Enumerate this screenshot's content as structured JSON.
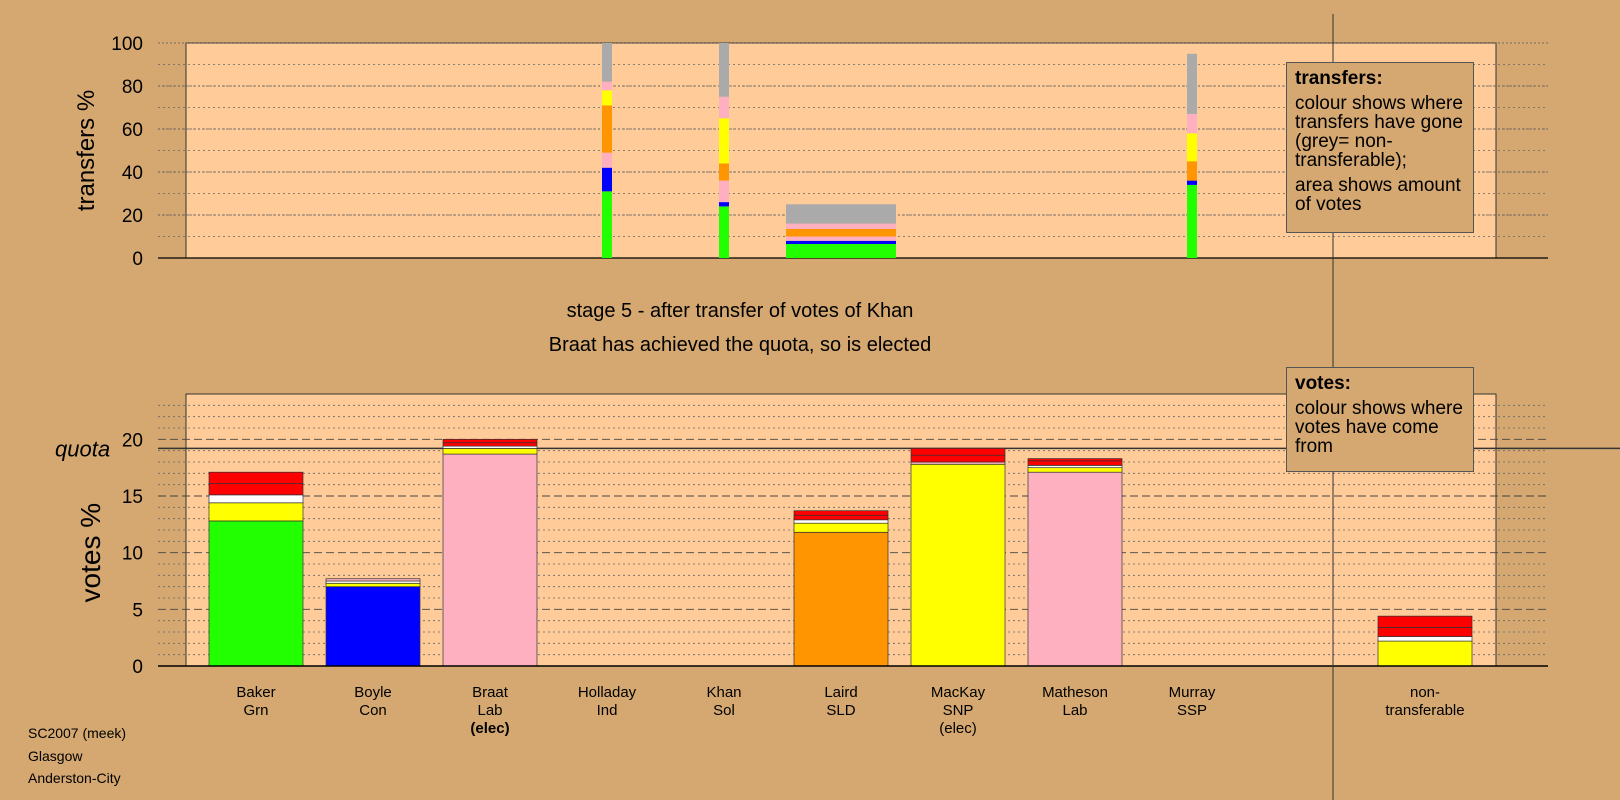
{
  "stage_title": "stage 5 - after transfer of votes of Khan",
  "stage_subtitle": "Braat has achieved the quota, so is elected",
  "info": [
    "SC2007 (meek)",
    "Glasgow",
    "Anderston-City"
  ],
  "legend_transfers": {
    "heading": "transfers:",
    "p1": "colour shows where transfers have gone (grey= non-transferable);",
    "p2": "area shows amount of votes"
  },
  "legend_votes": {
    "heading": "votes:",
    "p1": "colour shows where votes have come from"
  },
  "colors": {
    "background": "#d4a870",
    "plot_bg": "#ffcc99",
    "Grn": "#22ff00",
    "Con": "#0000ff",
    "Lab": "#ffb0c0",
    "Ind": "#ffffff",
    "Sol": "#ff0000",
    "SLD": "#ff9500",
    "SNP": "#ffff00",
    "SSP": "#ff0000",
    "nontransferable": "#aaaaaa"
  },
  "chart_data": [
    {
      "type": "bar",
      "ylabel": "transfers %",
      "ylim": [
        0,
        100
      ],
      "yticks": [
        0,
        20,
        40,
        60,
        80,
        100
      ],
      "columns": [
        {
          "candidate": "Holladay",
          "segments": [
            {
              "party": "Grn",
              "value": 31
            },
            {
              "party": "Con",
              "value": 11
            },
            {
              "party": "Lab",
              "value": 7
            },
            {
              "party": "SLD",
              "value": 22
            },
            {
              "party": "SNP",
              "value": 7
            },
            {
              "party": "Lab",
              "value": 4
            },
            {
              "party": "nontransferable",
              "value": 18
            }
          ]
        },
        {
          "candidate": "Khan",
          "segments": [
            {
              "party": "Grn",
              "value": 24
            },
            {
              "party": "Con",
              "value": 2
            },
            {
              "party": "Lab",
              "value": 10
            },
            {
              "party": "SLD",
              "value": 8
            },
            {
              "party": "SNP",
              "value": 21
            },
            {
              "party": "Lab",
              "value": 10
            },
            {
              "party": "nontransferable",
              "value": 25
            }
          ]
        },
        {
          "candidate": "Laird",
          "wide": true,
          "segments": [
            {
              "party": "Grn",
              "value": 6.5
            },
            {
              "party": "Con",
              "value": 1.5
            },
            {
              "party": "Lab",
              "value": 2
            },
            {
              "party": "SLD",
              "value": 3.5
            },
            {
              "party": "Lab",
              "value": 2.5
            },
            {
              "party": "nontransferable",
              "value": 9
            }
          ]
        },
        {
          "candidate": "Murray",
          "segments": [
            {
              "party": "Grn",
              "value": 34
            },
            {
              "party": "Con",
              "value": 2
            },
            {
              "party": "SLD",
              "value": 9
            },
            {
              "party": "SNP",
              "value": 13
            },
            {
              "party": "Lab",
              "value": 9
            },
            {
              "party": "nontransferable",
              "value": 28
            }
          ]
        }
      ]
    },
    {
      "type": "bar",
      "ylabel": "votes %",
      "ylim": [
        0,
        24
      ],
      "yticks": [
        0,
        5,
        10,
        15,
        20
      ],
      "quota_label": "quota",
      "quota": 19.2,
      "categories": [
        {
          "name": "Baker",
          "party": "Grn",
          "elected": ""
        },
        {
          "name": "Boyle",
          "party": "Con",
          "elected": ""
        },
        {
          "name": "Braat",
          "party": "Lab",
          "elected": "(elec)"
        },
        {
          "name": "Holladay",
          "party": "Ind",
          "elected": ""
        },
        {
          "name": "Khan",
          "party": "Sol",
          "elected": ""
        },
        {
          "name": "Laird",
          "party": "SLD",
          "elected": ""
        },
        {
          "name": "MacKay",
          "party": "SNP",
          "elected": "(elec)"
        },
        {
          "name": "Matheson",
          "party": "Lab",
          "elected": ""
        },
        {
          "name": "Murray",
          "party": "SSP",
          "elected": ""
        },
        {
          "name": "non-\ntransferable",
          "party": "",
          "elected": ""
        }
      ],
      "stacks": [
        [
          {
            "party": "Grn",
            "value": 12.8
          },
          {
            "party": "SNP",
            "value": 1.6
          },
          {
            "party": "Ind",
            "value": 0.7
          },
          {
            "party": "Sol",
            "value": 1.0
          },
          {
            "party": "Sol",
            "value": 1.0
          }
        ],
        [
          {
            "party": "Con",
            "value": 7.0
          },
          {
            "party": "SNP",
            "value": 0.3
          },
          {
            "party": "Ind",
            "value": 0.2
          },
          {
            "party": "Lab",
            "value": 0.2
          }
        ],
        [
          {
            "party": "Lab",
            "value": 18.7
          },
          {
            "party": "SNP",
            "value": 0.5
          },
          {
            "party": "Ind",
            "value": 0.2
          },
          {
            "party": "Sol",
            "value": 0.3
          },
          {
            "party": "Sol",
            "value": 0.3
          }
        ],
        [],
        [],
        [
          {
            "party": "SLD",
            "value": 11.8
          },
          {
            "party": "SNP",
            "value": 0.8
          },
          {
            "party": "Ind",
            "value": 0.3
          },
          {
            "party": "Sol",
            "value": 0.4
          },
          {
            "party": "Sol",
            "value": 0.4
          }
        ],
        [
          {
            "party": "SNP",
            "value": 17.8
          },
          {
            "party": "Lab",
            "value": 0.2
          },
          {
            "party": "Sol",
            "value": 0.6
          },
          {
            "party": "Sol",
            "value": 0.6
          }
        ],
        [
          {
            "party": "Lab",
            "value": 17.1
          },
          {
            "party": "SNP",
            "value": 0.4
          },
          {
            "party": "Ind",
            "value": 0.2
          },
          {
            "party": "Sol",
            "value": 0.4
          },
          {
            "party": "Sol",
            "value": 0.2
          }
        ],
        [],
        [
          {
            "party": "SNP",
            "value": 2.2
          },
          {
            "party": "Ind",
            "value": 0.4
          },
          {
            "party": "Sol",
            "value": 0.8
          },
          {
            "party": "Sol",
            "value": 1.0
          }
        ]
      ]
    }
  ]
}
